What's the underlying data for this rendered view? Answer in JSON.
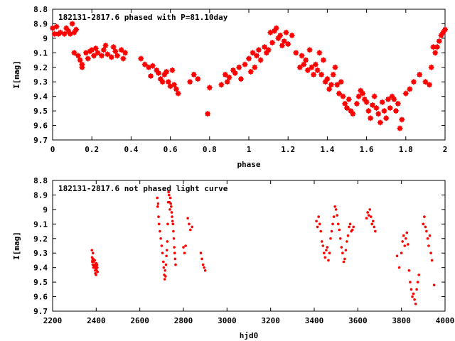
{
  "chart_data": [
    {
      "type": "scatter",
      "title": "182131-2817.6 phased with P=81.10day",
      "xlabel": "phase",
      "ylabel": "I[mag]",
      "xlim": [
        0,
        2
      ],
      "ylim": [
        8.8,
        9.7
      ],
      "y_inverted": true,
      "xticks": [
        0,
        0.2,
        0.4,
        0.6,
        0.8,
        1,
        1.2,
        1.4,
        1.6,
        1.8,
        2
      ],
      "yticks": [
        8.8,
        8.9,
        9,
        9.1,
        9.2,
        9.3,
        9.4,
        9.5,
        9.6,
        9.7
      ],
      "grid": false,
      "color": "#ff0000",
      "marker": "filled-square",
      "series": [
        {
          "x": [
            0.0,
            0.01,
            0.02,
            0.03,
            0.04,
            0.06,
            0.07,
            0.08,
            0.09,
            0.1,
            0.11,
            0.12,
            0.11,
            0.13,
            0.14,
            0.15,
            0.15,
            0.17,
            0.18,
            0.19,
            0.2,
            0.21,
            0.22,
            0.23,
            0.25,
            0.26,
            0.27,
            0.28,
            0.3,
            0.31,
            0.32,
            0.33,
            0.35,
            0.36,
            0.37,
            0.45,
            0.47,
            0.49,
            0.5,
            0.51,
            0.53,
            0.54,
            0.55,
            0.56,
            0.57,
            0.58,
            0.59,
            0.6,
            0.61,
            0.62,
            0.63,
            0.64,
            0.7,
            0.72,
            0.74,
            0.79,
            0.8,
            0.86,
            0.88,
            0.89,
            0.9,
            0.92,
            0.93,
            0.95,
            0.96,
            0.98,
            1.0,
            1.01,
            1.02,
            1.03,
            1.04,
            1.05,
            1.06,
            1.08,
            1.09,
            1.1,
            1.11,
            1.12,
            1.13,
            1.14,
            1.15,
            1.16,
            1.17,
            1.18,
            1.19,
            1.2,
            1.22,
            1.24,
            1.26,
            1.27,
            1.28,
            1.29,
            1.3,
            1.31,
            1.32,
            1.33,
            1.34,
            1.35,
            1.36,
            1.37,
            1.38,
            1.39,
            1.4,
            1.41,
            1.42,
            1.43,
            1.44,
            1.45,
            1.46,
            1.47,
            1.48,
            1.49,
            1.5,
            1.51,
            1.52,
            1.53,
            1.55,
            1.56,
            1.57,
            1.58,
            1.59,
            1.6,
            1.61,
            1.62,
            1.63,
            1.64,
            1.65,
            1.66,
            1.67,
            1.68,
            1.69,
            1.7,
            1.71,
            1.72,
            1.73,
            1.74,
            1.75,
            1.76,
            1.77,
            1.78,
            1.8,
            1.82,
            1.84,
            1.87,
            1.9,
            1.92,
            1.93,
            1.94,
            1.95,
            1.96,
            1.97,
            1.98,
            1.99,
            2.0
          ],
          "y": [
            8.93,
            8.97,
            8.92,
            8.97,
            8.96,
            8.97,
            8.93,
            8.95,
            8.97,
            8.9,
            8.96,
            8.94,
            9.1,
            9.12,
            9.15,
            9.18,
            9.2,
            9.1,
            9.14,
            9.09,
            9.08,
            9.12,
            9.07,
            9.1,
            9.12,
            9.08,
            9.05,
            9.11,
            9.13,
            9.06,
            9.09,
            9.12,
            9.08,
            9.14,
            9.1,
            9.14,
            9.18,
            9.2,
            9.26,
            9.19,
            9.22,
            9.24,
            9.28,
            9.3,
            9.25,
            9.23,
            9.3,
            9.33,
            9.22,
            9.32,
            9.35,
            9.38,
            9.3,
            9.25,
            9.28,
            9.52,
            9.34,
            9.32,
            9.25,
            9.3,
            9.27,
            9.22,
            9.24,
            9.2,
            9.28,
            9.18,
            9.14,
            9.23,
            9.1,
            9.2,
            9.12,
            9.08,
            9.15,
            9.06,
            9.1,
            9.08,
            8.96,
            9.03,
            8.95,
            8.93,
            9.0,
            8.98,
            9.05,
            9.02,
            8.96,
            9.04,
            8.98,
            9.1,
            9.2,
            9.12,
            9.18,
            9.15,
            9.22,
            9.08,
            9.2,
            9.25,
            9.18,
            9.22,
            9.1,
            9.25,
            9.15,
            9.3,
            9.28,
            9.35,
            9.32,
            9.25,
            9.2,
            9.32,
            9.38,
            9.3,
            9.4,
            9.45,
            9.48,
            9.42,
            9.5,
            9.52,
            9.45,
            9.4,
            9.36,
            9.38,
            9.42,
            9.44,
            9.5,
            9.55,
            9.46,
            9.4,
            9.48,
            9.52,
            9.58,
            9.44,
            9.5,
            9.55,
            9.42,
            9.48,
            9.4,
            9.42,
            9.5,
            9.45,
            9.62,
            9.56,
            9.38,
            9.35,
            9.3,
            9.25,
            9.3,
            9.32,
            9.2,
            9.06,
            9.1,
            9.06,
            9.02,
            8.98,
            8.96,
            8.94
          ]
        }
      ]
    },
    {
      "type": "scatter",
      "title": "182131-2817.6 not phased light curve",
      "xlabel": "hjd0",
      "ylabel": "I[mag]",
      "xlim": [
        2200,
        4000
      ],
      "ylim": [
        8.8,
        9.7
      ],
      "y_inverted": true,
      "xticks": [
        2200,
        2400,
        2600,
        2800,
        3000,
        3200,
        3400,
        3600,
        3800,
        4000
      ],
      "yticks": [
        8.8,
        8.9,
        9,
        9.1,
        9.2,
        9.3,
        9.4,
        9.5,
        9.6,
        9.7
      ],
      "grid": false,
      "color": "#ff0000",
      "marker": "small-dot",
      "series": [
        {
          "x": [
            2380,
            2381,
            2382,
            2383,
            2384,
            2385,
            2386,
            2387,
            2388,
            2390,
            2392,
            2393,
            2394,
            2395,
            2396,
            2397,
            2398,
            2399,
            2400,
            2401,
            2402,
            2403,
            2404,
            2405,
            2406,
            2680,
            2682,
            2684,
            2686,
            2688,
            2692,
            2696,
            2700,
            2704,
            2708,
            2710,
            2712,
            2714,
            2716,
            2718,
            2720,
            2722,
            2724,
            2726,
            2728,
            2730,
            2732,
            2734,
            2736,
            2738,
            2740,
            2742,
            2744,
            2746,
            2748,
            2750,
            2752,
            2754,
            2756,
            2758,
            2760,
            2762,
            2764,
            2800,
            2805,
            2810,
            2820,
            2826,
            2832,
            2840,
            2880,
            2885,
            2890,
            2895,
            2900,
            3410,
            3415,
            3420,
            3425,
            3430,
            3435,
            3440,
            3445,
            3450,
            3455,
            3460,
            3465,
            3470,
            3475,
            3480,
            3485,
            3490,
            3495,
            3500,
            3505,
            3510,
            3515,
            3520,
            3525,
            3530,
            3535,
            3540,
            3545,
            3550,
            3555,
            3560,
            3565,
            3570,
            3575,
            3580,
            3640,
            3645,
            3650,
            3655,
            3660,
            3665,
            3670,
            3675,
            3680,
            3780,
            3790,
            3800,
            3805,
            3810,
            3815,
            3820,
            3825,
            3830,
            3835,
            3840,
            3845,
            3850,
            3855,
            3860,
            3865,
            3870,
            3875,
            3880,
            3900,
            3905,
            3910,
            3915,
            3920,
            3925,
            3930,
            3935,
            3940,
            3950
          ],
          "y": [
            9.28,
            9.33,
            9.36,
            9.35,
            9.38,
            9.3,
            9.34,
            9.4,
            9.36,
            9.38,
            9.39,
            9.35,
            9.4,
            9.42,
            9.44,
            9.38,
            9.41,
            9.45,
            9.37,
            9.39,
            9.42,
            9.4,
            9.38,
            9.4,
            9.43,
            8.92,
            8.98,
            8.96,
            9.05,
            9.1,
            9.15,
            9.2,
            9.25,
            9.3,
            9.36,
            9.4,
            9.45,
            9.48,
            9.42,
            9.46,
            9.38,
            9.32,
            9.28,
            9.22,
            9.1,
            8.95,
            8.88,
            8.9,
            8.95,
            9.0,
            8.92,
            8.96,
            8.98,
            9.02,
            9.05,
            9.08,
            9.1,
            9.15,
            9.2,
            9.26,
            9.3,
            9.34,
            9.38,
            9.26,
            9.3,
            9.25,
            9.06,
            9.1,
            9.14,
            9.12,
            9.3,
            9.34,
            9.38,
            9.4,
            9.42,
            9.08,
            9.12,
            9.05,
            9.1,
            9.15,
            9.22,
            9.25,
            9.3,
            9.33,
            9.28,
            9.26,
            9.35,
            9.3,
            9.2,
            9.15,
            9.1,
            9.05,
            8.98,
            9.0,
            9.04,
            9.1,
            9.14,
            9.2,
            9.26,
            9.3,
            9.36,
            9.34,
            9.28,
            9.22,
            9.18,
            9.12,
            9.1,
            9.15,
            9.14,
            9.12,
            9.06,
            9.02,
            9.04,
            9.0,
            9.05,
            9.1,
            9.08,
            9.12,
            9.15,
            9.32,
            9.4,
            9.3,
            9.22,
            9.18,
            9.25,
            9.2,
            9.16,
            9.24,
            9.42,
            9.5,
            9.55,
            9.6,
            9.58,
            9.62,
            9.65,
            9.55,
            9.5,
            9.45,
            9.1,
            9.05,
            9.12,
            9.15,
            9.2,
            9.25,
            9.18,
            9.3,
            9.35,
            9.52
          ]
        }
      ]
    }
  ]
}
